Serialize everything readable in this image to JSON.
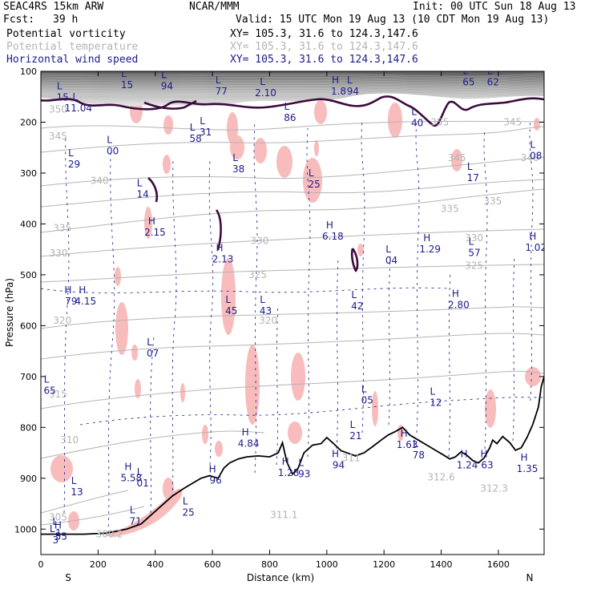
{
  "header": {
    "model": "SEAC4RS 15km ARW",
    "fcst_label": "Fcst:",
    "fcst_value": "39 h",
    "center": "NCAR/MMM",
    "init": "Init: 00 UTC Sun 18 Aug 13",
    "valid": "Valid: 15 UTC Mon 19 Aug 13 (10 CDT Mon 19 Aug 13)",
    "fields": [
      {
        "name": "Potential vorticity",
        "xy": "XY= 105.3, 31.6 to 124.3,147.6",
        "color": "#000000"
      },
      {
        "name": "Potential temperature",
        "xy": "XY= 105.3, 31.6 to 124.3,147.6",
        "color": "#b4b4b4"
      },
      {
        "name": "Horizontal wind speed",
        "xy": "XY= 105.3, 31.6 to 124.3,147.6",
        "color": "#1c1c8c"
      }
    ]
  },
  "chart_data": {
    "type": "cross-section",
    "xlabel": "Distance (km)",
    "ylabel": "Pressure (hPa)",
    "xlim": [
      0,
      1760
    ],
    "ylim": [
      1050,
      100
    ],
    "x_ticks": [
      0,
      200,
      400,
      600,
      800,
      1000,
      1200,
      1400,
      1600
    ],
    "y_ticks": [
      100,
      200,
      300,
      400,
      500,
      600,
      700,
      800,
      900,
      1000
    ],
    "endpoints": {
      "left": "S",
      "right": "N"
    },
    "colors": {
      "theta": "#b4b4b4",
      "pv": "#3c0a3c",
      "hl": "#1c1c8c",
      "shade": "#f8bcbc",
      "terrain": "#000000"
    },
    "theta_labels": [
      {
        "x": 240,
        "p": 1010,
        "v": "300.2"
      },
      {
        "x": 60,
        "p": 977,
        "v": "305"
      },
      {
        "x": 100,
        "p": 825,
        "v": "310"
      },
      {
        "x": 60,
        "p": 735,
        "v": "315"
      },
      {
        "x": 75,
        "p": 590,
        "v": "320"
      },
      {
        "x": 795,
        "p": 590,
        "v": "320"
      },
      {
        "x": 758,
        "p": 500,
        "v": "325"
      },
      {
        "x": 1515,
        "p": 482,
        "v": "325"
      },
      {
        "x": 62,
        "p": 458,
        "v": "330"
      },
      {
        "x": 765,
        "p": 433,
        "v": "330"
      },
      {
        "x": 1515,
        "p": 428,
        "v": "330"
      },
      {
        "x": 75,
        "p": 408,
        "v": "335"
      },
      {
        "x": 1430,
        "p": 370,
        "v": "335"
      },
      {
        "x": 1580,
        "p": 355,
        "v": "335"
      },
      {
        "x": 205,
        "p": 315,
        "v": "340"
      },
      {
        "x": 1710,
        "p": 270,
        "v": "340"
      },
      {
        "x": 1455,
        "p": 270,
        "v": "345"
      },
      {
        "x": 60,
        "p": 228,
        "v": "345"
      },
      {
        "x": 1650,
        "p": 200,
        "v": "345"
      },
      {
        "x": 60,
        "p": 175,
        "v": "350"
      },
      {
        "x": 1395,
        "p": 200,
        "v": "355"
      },
      {
        "x": 1400,
        "p": 898,
        "v": "312.6"
      },
      {
        "x": 1585,
        "p": 920,
        "v": "312.3"
      },
      {
        "x": 850,
        "p": 972,
        "v": "311.1"
      },
      {
        "x": 1085,
        "p": 860,
        "v": "311"
      }
    ],
    "extrema": [
      {
        "kind": "L",
        "x": 120,
        "p": 163,
        "v": "11.04",
        "color": "navy"
      },
      {
        "kind": "L",
        "x": 105,
        "p": 273,
        "v": "29",
        "color": "navy"
      },
      {
        "kind": "L",
        "x": 240,
        "p": 247,
        "v": "00",
        "color": "navy"
      },
      {
        "kind": "L",
        "x": 345,
        "p": 332,
        "v": "14",
        "color": "navy"
      },
      {
        "kind": "H",
        "x": 388,
        "p": 407,
        "v": "2.15",
        "color": "navy"
      },
      {
        "kind": "L",
        "x": 530,
        "p": 223,
        "v": "58",
        "color": "navy"
      },
      {
        "kind": "L",
        "x": 565,
        "p": 210,
        "v": "31",
        "color": "navy"
      },
      {
        "kind": "L",
        "x": 680,
        "p": 283,
        "v": "38",
        "color": "navy"
      },
      {
        "kind": "H",
        "x": 625,
        "p": 460,
        "v": "2.13",
        "color": "navy"
      },
      {
        "kind": "H",
        "x": 1010,
        "p": 415,
        "v": "6.18",
        "color": "navy"
      },
      {
        "kind": "L",
        "x": 860,
        "p": 182,
        "v": "86",
        "color": "navy"
      },
      {
        "kind": "H",
        "x": 1030,
        "p": 130,
        "v": "1.8",
        "color": "navy"
      },
      {
        "kind": "L",
        "x": 1080,
        "p": 130,
        "v": "94",
        "color": "navy"
      },
      {
        "kind": "L",
        "x": 775,
        "p": 133,
        "v": "2.10",
        "color": "navy"
      },
      {
        "kind": "L",
        "x": 1305,
        "p": 192,
        "v": "40",
        "color": "navy"
      },
      {
        "kind": "L",
        "x": 945,
        "p": 313,
        "v": "25",
        "color": "navy"
      },
      {
        "kind": "L",
        "x": 1215,
        "p": 462,
        "v": "04",
        "color": "navy"
      },
      {
        "kind": "H",
        "x": 1350,
        "p": 440,
        "v": "1.29",
        "color": "navy"
      },
      {
        "kind": "L",
        "x": 1505,
        "p": 447,
        "v": "57",
        "color": "navy"
      },
      {
        "kind": "L",
        "x": 1500,
        "p": 300,
        "v": "17",
        "color": "navy"
      },
      {
        "kind": "L",
        "x": 1720,
        "p": 257,
        "v": "08",
        "color": "navy"
      },
      {
        "kind": "H",
        "x": 1720,
        "p": 437,
        "v": "1.02",
        "color": "navy"
      },
      {
        "kind": "H",
        "x": 95,
        "p": 543,
        "v": "79",
        "color": "navy"
      },
      {
        "kind": "H",
        "x": 145,
        "p": 543,
        "v": "4.15",
        "color": "navy"
      },
      {
        "kind": "L",
        "x": 655,
        "p": 562,
        "v": "45",
        "color": "navy"
      },
      {
        "kind": "L",
        "x": 775,
        "p": 562,
        "v": "43",
        "color": "navy"
      },
      {
        "kind": "L",
        "x": 1095,
        "p": 552,
        "v": "42",
        "color": "navy"
      },
      {
        "kind": "H",
        "x": 1450,
        "p": 550,
        "v": "2.80",
        "color": "navy"
      },
      {
        "kind": "L",
        "x": 380,
        "p": 645,
        "v": "07",
        "color": "navy"
      },
      {
        "kind": "L",
        "x": 1130,
        "p": 737,
        "v": "05",
        "color": "navy"
      },
      {
        "kind": "L",
        "x": 1370,
        "p": 742,
        "v": "12",
        "color": "navy"
      },
      {
        "kind": "L",
        "x": 1090,
        "p": 807,
        "v": "21",
        "color": "navy"
      },
      {
        "kind": "H",
        "x": 715,
        "p": 822,
        "v": "4.84",
        "color": "navy"
      },
      {
        "kind": "H",
        "x": 1270,
        "p": 825,
        "v": "1.63",
        "color": "navy"
      },
      {
        "kind": "L",
        "x": 1310,
        "p": 845,
        "v": "78",
        "color": "navy"
      },
      {
        "kind": "H",
        "x": 1030,
        "p": 865,
        "v": "94",
        "color": "navy"
      },
      {
        "kind": "H",
        "x": 1480,
        "p": 865,
        "v": "1.24",
        "color": "navy"
      },
      {
        "kind": "H",
        "x": 1550,
        "p": 865,
        "v": "63",
        "color": "navy"
      },
      {
        "kind": "H",
        "x": 1690,
        "p": 872,
        "v": "1.35",
        "color": "navy"
      },
      {
        "kind": "H",
        "x": 305,
        "p": 890,
        "v": "5.58",
        "color": "navy"
      },
      {
        "kind": "L",
        "x": 345,
        "p": 900,
        "v": "01",
        "color": "navy"
      },
      {
        "kind": "H",
        "x": 600,
        "p": 895,
        "v": "96",
        "color": "navy"
      },
      {
        "kind": "H",
        "x": 855,
        "p": 880,
        "v": "1.28",
        "color": "navy"
      },
      {
        "kind": "L",
        "x": 910,
        "p": 882,
        "v": "93",
        "color": "navy"
      },
      {
        "kind": "L",
        "x": 115,
        "p": 918,
        "v": "13",
        "color": "navy"
      },
      {
        "kind": "L",
        "x": 505,
        "p": 958,
        "v": "25",
        "color": "navy"
      },
      {
        "kind": "L",
        "x": 320,
        "p": 975,
        "v": "71",
        "color": "navy"
      },
      {
        "kind": "H",
        "x": 60,
        "p": 1005,
        "v": "55",
        "color": "navy"
      },
      {
        "kind": "L",
        "x": 50,
        "p": 998,
        "v": "1",
        "color": "navy"
      },
      {
        "kind": "L",
        "x": 40,
        "p": 1012,
        "v": "3",
        "color": "navy"
      },
      {
        "kind": "L",
        "x": 20,
        "p": 718,
        "v": "65",
        "color": "navy"
      },
      {
        "kind": "L",
        "x": 1485,
        "p": 112,
        "v": "65",
        "color": "navy"
      },
      {
        "kind": "L",
        "x": 1570,
        "p": 112,
        "v": "62",
        "color": "navy"
      },
      {
        "kind": "L",
        "x": 290,
        "p": 117,
        "v": "15",
        "color": "navy"
      },
      {
        "kind": "L",
        "x": 65,
        "p": 142,
        "v": "15",
        "color": "navy"
      },
      {
        "kind": "L",
        "x": 430,
        "p": 120,
        "v": "94",
        "color": "navy"
      },
      {
        "kind": "L",
        "x": 620,
        "p": 130,
        "v": "77",
        "color": "navy"
      }
    ]
  }
}
